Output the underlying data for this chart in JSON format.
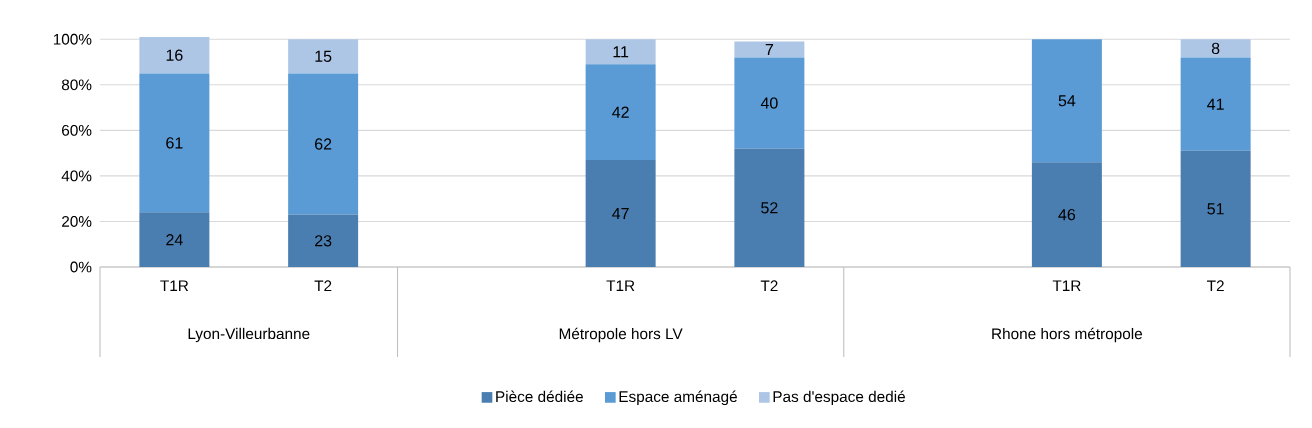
{
  "chart_data": {
    "type": "bar",
    "stacked": true,
    "categories": [
      "T1R",
      "T2",
      null,
      "T1R",
      "T2",
      null,
      "T1R",
      "T2"
    ],
    "series": [
      {
        "name": "Pièce dédiée",
        "color": "#4a7eb0",
        "values": [
          24,
          23,
          null,
          47,
          52,
          null,
          46,
          51
        ]
      },
      {
        "name": "Espace aménagé",
        "color": "#5b9bd5",
        "values": [
          61,
          62,
          null,
          42,
          40,
          null,
          54,
          41
        ]
      },
      {
        "name": "Pas d'espace dedié",
        "color": "#aec6e6",
        "values": [
          16,
          15,
          null,
          11,
          7,
          null,
          null,
          8
        ]
      }
    ],
    "annotations": [
      "Lyon-Villeurbanne",
      "Métropole hors LV",
      "Rhone hors métropole"
    ],
    "ylim": [
      0,
      101
    ],
    "yticks": [
      {
        "value": 0,
        "label": "0%"
      },
      {
        "value": 20,
        "label": "20%"
      },
      {
        "value": 40,
        "label": "40%"
      },
      {
        "value": 60,
        "label": "60%"
      },
      {
        "value": 80,
        "label": "80%"
      },
      {
        "value": 100,
        "label": "100%"
      }
    ],
    "grid": "y",
    "legend": "bottom",
    "data_labels": true
  }
}
